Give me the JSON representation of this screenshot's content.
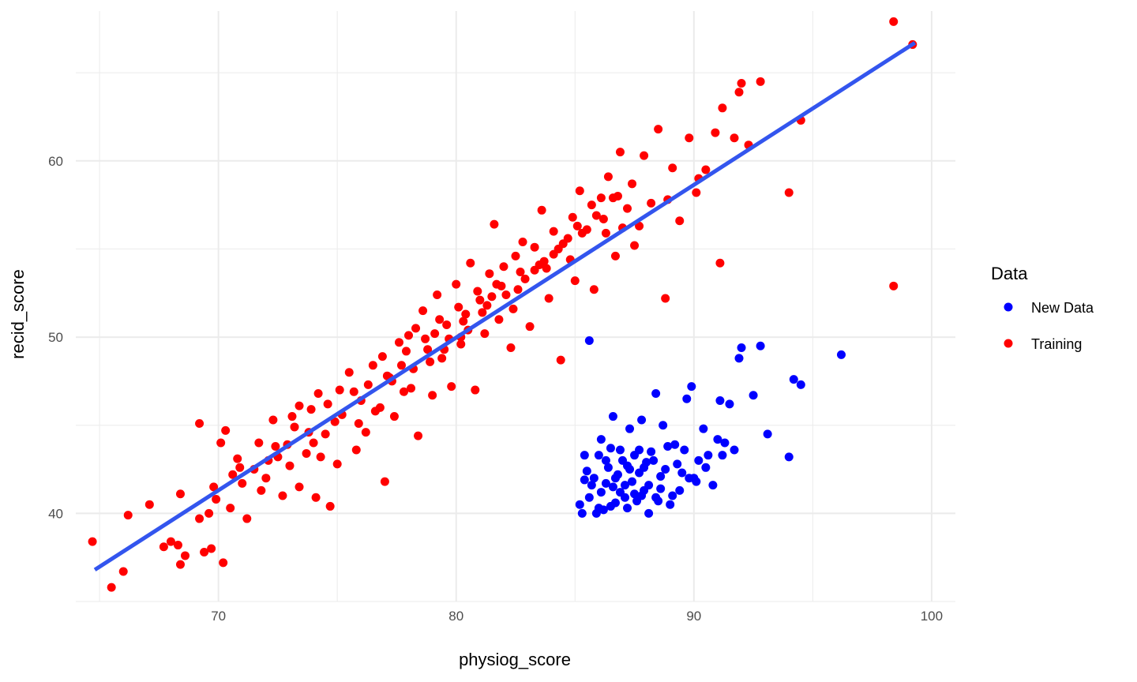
{
  "chart_data": {
    "type": "scatter",
    "xlabel": "physiog_score",
    "ylabel": "recid_score",
    "xlim": [
      64,
      101
    ],
    "ylim": [
      35,
      68.5
    ],
    "x_ticks": [
      70,
      80,
      90,
      100
    ],
    "y_ticks": [
      40,
      50,
      60
    ],
    "x_tick_labels": [
      "70",
      "80",
      "90",
      "100"
    ],
    "y_tick_labels": [
      "40",
      "50",
      "60"
    ],
    "grid": true,
    "legend": {
      "title": "Data",
      "placement": "right",
      "entries": [
        {
          "label": "New Data",
          "color": "#0000ff"
        },
        {
          "label": "Training",
          "color": "#ff0000"
        }
      ]
    },
    "trend_line": {
      "color": "#3355ee",
      "from": [
        64.8,
        36.8
      ],
      "to": [
        99.3,
        66.7
      ]
    },
    "series": [
      {
        "key": "training",
        "color": "#ff0000",
        "points": [
          [
            64.7,
            38.4
          ],
          [
            65.5,
            35.8
          ],
          [
            66.0,
            36.7
          ],
          [
            66.2,
            39.9
          ],
          [
            67.1,
            40.5
          ],
          [
            67.7,
            38.1
          ],
          [
            68.0,
            38.4
          ],
          [
            68.3,
            38.2
          ],
          [
            68.4,
            37.1
          ],
          [
            68.6,
            37.6
          ],
          [
            68.4,
            41.1
          ],
          [
            69.2,
            39.7
          ],
          [
            69.2,
            45.1
          ],
          [
            69.4,
            37.8
          ],
          [
            69.7,
            38.0
          ],
          [
            69.6,
            40.0
          ],
          [
            69.8,
            41.5
          ],
          [
            70.1,
            44.0
          ],
          [
            70.2,
            37.2
          ],
          [
            70.3,
            44.7
          ],
          [
            70.5,
            40.3
          ],
          [
            70.6,
            42.2
          ],
          [
            70.8,
            43.1
          ],
          [
            71.2,
            39.7
          ],
          [
            71.5,
            42.5
          ],
          [
            71.8,
            41.3
          ],
          [
            72.1,
            43.0
          ],
          [
            72.4,
            43.8
          ],
          [
            72.3,
            45.3
          ],
          [
            72.7,
            41.0
          ],
          [
            73.0,
            42.7
          ],
          [
            73.2,
            44.9
          ],
          [
            73.4,
            41.5
          ],
          [
            73.7,
            43.4
          ],
          [
            73.9,
            45.9
          ],
          [
            74.1,
            40.9
          ],
          [
            74.3,
            43.2
          ],
          [
            74.2,
            46.8
          ],
          [
            74.5,
            44.5
          ],
          [
            74.7,
            40.4
          ],
          [
            75.0,
            42.8
          ],
          [
            75.2,
            45.6
          ],
          [
            75.5,
            48.0
          ],
          [
            75.8,
            43.6
          ],
          [
            76.0,
            46.4
          ],
          [
            76.2,
            44.6
          ],
          [
            76.5,
            48.4
          ],
          [
            76.8,
            46.0
          ],
          [
            77.0,
            41.8
          ],
          [
            77.2,
            47.7
          ],
          [
            77.4,
            45.5
          ],
          [
            77.6,
            49.7
          ],
          [
            77.8,
            46.9
          ],
          [
            78.0,
            50.1
          ],
          [
            78.2,
            48.2
          ],
          [
            78.4,
            44.4
          ],
          [
            78.6,
            51.5
          ],
          [
            78.8,
            49.3
          ],
          [
            79.0,
            46.7
          ],
          [
            79.2,
            52.4
          ],
          [
            79.4,
            48.8
          ],
          [
            79.6,
            50.7
          ],
          [
            79.8,
            47.2
          ],
          [
            80.0,
            53.0
          ],
          [
            80.2,
            49.6
          ],
          [
            80.4,
            51.3
          ],
          [
            80.6,
            54.2
          ],
          [
            80.8,
            47.0
          ],
          [
            81.0,
            52.1
          ],
          [
            81.2,
            50.2
          ],
          [
            81.4,
            53.6
          ],
          [
            81.6,
            56.4
          ],
          [
            81.8,
            51.0
          ],
          [
            82.0,
            54.0
          ],
          [
            82.3,
            49.4
          ],
          [
            82.6,
            52.7
          ],
          [
            82.8,
            55.4
          ],
          [
            83.1,
            50.6
          ],
          [
            83.3,
            53.8
          ],
          [
            83.6,
            57.2
          ],
          [
            83.9,
            52.2
          ],
          [
            84.1,
            54.7
          ],
          [
            84.4,
            48.7
          ],
          [
            84.7,
            55.6
          ],
          [
            85.0,
            53.2
          ],
          [
            85.2,
            58.3
          ],
          [
            85.5,
            56.1
          ],
          [
            85.8,
            52.7
          ],
          [
            86.1,
            57.9
          ],
          [
            86.4,
            59.1
          ],
          [
            86.7,
            54.6
          ],
          [
            86.9,
            60.5
          ],
          [
            87.2,
            57.3
          ],
          [
            87.5,
            55.2
          ],
          [
            87.9,
            60.3
          ],
          [
            88.2,
            57.6
          ],
          [
            88.5,
            61.8
          ],
          [
            88.8,
            52.2
          ],
          [
            89.1,
            59.6
          ],
          [
            89.4,
            56.6
          ],
          [
            89.8,
            61.3
          ],
          [
            90.1,
            58.2
          ],
          [
            90.5,
            59.5
          ],
          [
            90.9,
            61.6
          ],
          [
            91.2,
            63.0
          ],
          [
            91.1,
            54.2
          ],
          [
            91.7,
            61.3
          ],
          [
            91.9,
            63.9
          ],
          [
            92.0,
            64.4
          ],
          [
            92.3,
            60.9
          ],
          [
            92.8,
            64.5
          ],
          [
            94.0,
            58.2
          ],
          [
            94.5,
            62.3
          ],
          [
            98.4,
            67.9
          ],
          [
            98.4,
            52.9
          ],
          [
            99.2,
            66.6
          ],
          [
            72.5,
            43.2
          ],
          [
            73.4,
            46.1
          ],
          [
            74.0,
            44.0
          ],
          [
            74.9,
            45.2
          ],
          [
            75.7,
            46.9
          ],
          [
            76.3,
            47.3
          ],
          [
            76.9,
            48.9
          ],
          [
            77.3,
            47.5
          ],
          [
            77.9,
            49.2
          ],
          [
            78.3,
            50.5
          ],
          [
            78.9,
            48.6
          ],
          [
            79.3,
            51.0
          ],
          [
            79.7,
            49.9
          ],
          [
            80.1,
            51.7
          ],
          [
            80.5,
            50.4
          ],
          [
            80.9,
            52.6
          ],
          [
            81.3,
            51.8
          ],
          [
            81.7,
            53.0
          ],
          [
            82.1,
            52.4
          ],
          [
            82.5,
            54.6
          ],
          [
            82.9,
            53.3
          ],
          [
            83.3,
            55.1
          ],
          [
            83.7,
            54.3
          ],
          [
            84.1,
            56.0
          ],
          [
            84.5,
            55.3
          ],
          [
            84.9,
            56.8
          ],
          [
            85.3,
            55.9
          ],
          [
            85.7,
            57.5
          ],
          [
            86.2,
            56.7
          ],
          [
            86.6,
            57.9
          ],
          [
            87.0,
            56.2
          ],
          [
            87.4,
            58.7
          ],
          [
            70.9,
            42.6
          ],
          [
            71.7,
            44.0
          ],
          [
            72.9,
            43.9
          ],
          [
            73.8,
            44.6
          ],
          [
            75.1,
            47.0
          ],
          [
            76.6,
            45.8
          ],
          [
            77.7,
            48.4
          ],
          [
            78.7,
            49.9
          ],
          [
            79.5,
            49.3
          ],
          [
            80.3,
            50.9
          ],
          [
            81.1,
            51.4
          ],
          [
            81.9,
            52.9
          ],
          [
            82.7,
            53.7
          ],
          [
            83.5,
            54.1
          ],
          [
            84.3,
            55.0
          ],
          [
            85.1,
            56.3
          ],
          [
            85.9,
            56.9
          ],
          [
            86.8,
            58.0
          ],
          [
            69.9,
            40.8
          ],
          [
            71.0,
            41.7
          ],
          [
            72.0,
            42.0
          ],
          [
            73.1,
            45.5
          ],
          [
            74.6,
            46.2
          ],
          [
            75.9,
            45.1
          ],
          [
            77.1,
            47.8
          ],
          [
            78.1,
            47.1
          ],
          [
            79.1,
            50.2
          ],
          [
            80.2,
            50.0
          ],
          [
            81.5,
            52.3
          ],
          [
            82.4,
            51.6
          ],
          [
            83.8,
            53.9
          ],
          [
            84.8,
            54.4
          ],
          [
            86.3,
            55.9
          ],
          [
            87.7,
            56.3
          ],
          [
            88.9,
            57.8
          ],
          [
            90.2,
            59.0
          ]
        ]
      },
      {
        "key": "new_data",
        "color": "#0000ff",
        "points": [
          [
            85.2,
            40.5
          ],
          [
            85.3,
            40.0
          ],
          [
            85.4,
            43.3
          ],
          [
            85.5,
            42.4
          ],
          [
            85.6,
            40.9
          ],
          [
            85.7,
            41.6
          ],
          [
            85.9,
            40.0
          ],
          [
            86.0,
            43.3
          ],
          [
            86.1,
            44.2
          ],
          [
            86.2,
            40.2
          ],
          [
            86.3,
            41.7
          ],
          [
            86.4,
            42.6
          ],
          [
            86.5,
            43.7
          ],
          [
            86.6,
            45.5
          ],
          [
            86.7,
            40.6
          ],
          [
            86.8,
            42.2
          ],
          [
            86.9,
            41.2
          ],
          [
            87.0,
            43.0
          ],
          [
            87.1,
            40.9
          ],
          [
            87.2,
            42.7
          ],
          [
            87.3,
            44.8
          ],
          [
            87.4,
            41.8
          ],
          [
            87.5,
            43.3
          ],
          [
            87.6,
            40.7
          ],
          [
            87.7,
            42.3
          ],
          [
            87.8,
            45.3
          ],
          [
            87.9,
            41.3
          ],
          [
            88.0,
            42.9
          ],
          [
            88.1,
            40.0
          ],
          [
            88.2,
            43.5
          ],
          [
            88.4,
            46.8
          ],
          [
            88.5,
            40.7
          ],
          [
            88.6,
            42.1
          ],
          [
            88.7,
            45.0
          ],
          [
            88.9,
            43.8
          ],
          [
            89.0,
            40.5
          ],
          [
            89.1,
            41.0
          ],
          [
            89.2,
            43.9
          ],
          [
            89.4,
            41.3
          ],
          [
            89.5,
            42.3
          ],
          [
            89.7,
            46.5
          ],
          [
            89.9,
            47.2
          ],
          [
            90.0,
            42.0
          ],
          [
            90.2,
            43.0
          ],
          [
            90.4,
            44.8
          ],
          [
            90.6,
            43.3
          ],
          [
            90.8,
            41.6
          ],
          [
            91.0,
            44.2
          ],
          [
            91.1,
            46.4
          ],
          [
            91.3,
            44.0
          ],
          [
            91.5,
            46.2
          ],
          [
            91.7,
            43.6
          ],
          [
            91.9,
            48.8
          ],
          [
            92.0,
            49.4
          ],
          [
            92.5,
            46.7
          ],
          [
            92.8,
            49.5
          ],
          [
            93.1,
            44.5
          ],
          [
            94.0,
            43.2
          ],
          [
            94.2,
            47.6
          ],
          [
            94.5,
            47.3
          ],
          [
            96.2,
            49.0
          ],
          [
            85.6,
            49.8
          ],
          [
            85.8,
            42.0
          ],
          [
            86.1,
            41.2
          ],
          [
            86.3,
            43.0
          ],
          [
            86.5,
            40.4
          ],
          [
            86.7,
            42.0
          ],
          [
            86.9,
            43.6
          ],
          [
            87.1,
            41.6
          ],
          [
            87.3,
            42.5
          ],
          [
            87.5,
            41.1
          ],
          [
            87.7,
            43.6
          ],
          [
            87.9,
            42.6
          ],
          [
            88.1,
            41.6
          ],
          [
            88.3,
            43.0
          ],
          [
            88.6,
            41.4
          ],
          [
            88.8,
            42.5
          ],
          [
            89.3,
            42.8
          ],
          [
            89.6,
            43.6
          ],
          [
            90.1,
            41.8
          ],
          [
            90.5,
            42.6
          ],
          [
            91.2,
            43.3
          ],
          [
            85.4,
            41.9
          ],
          [
            86.0,
            40.3
          ],
          [
            86.6,
            41.5
          ],
          [
            87.2,
            40.3
          ],
          [
            87.8,
            41.0
          ],
          [
            88.4,
            40.9
          ],
          [
            89.8,
            42.0
          ]
        ]
      }
    ]
  }
}
